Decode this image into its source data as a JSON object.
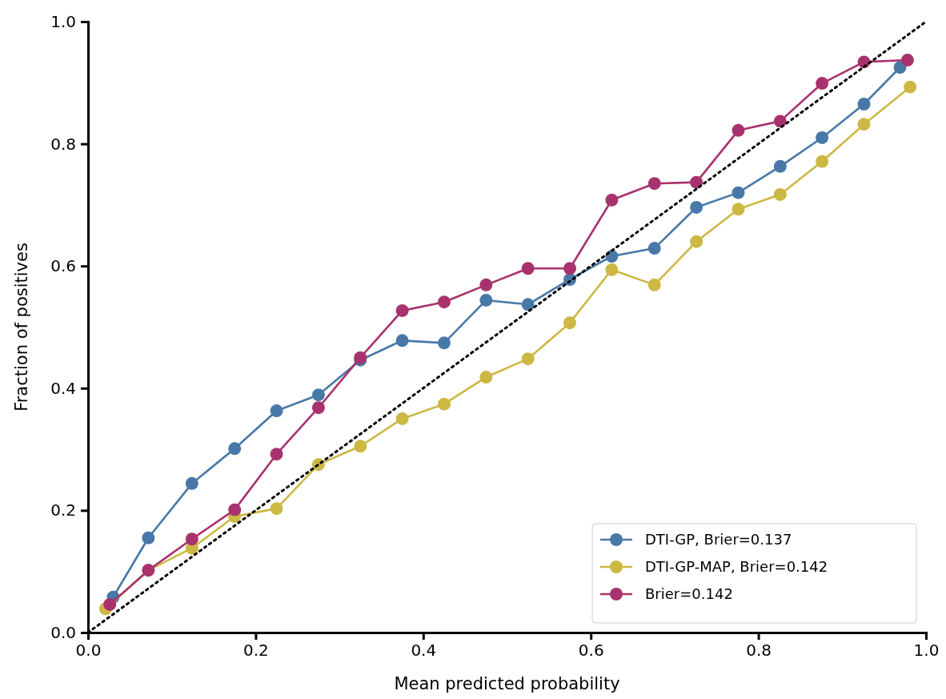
{
  "chart_data": {
    "type": "line",
    "xlabel": "Mean predicted probability",
    "ylabel": "Fraction of positives",
    "xlim": [
      0,
      1
    ],
    "ylim": [
      0,
      1
    ],
    "xticks": [
      {
        "value": 0,
        "label": "0.0"
      },
      0.2,
      0.4,
      0.6,
      0.8,
      {
        "value": 1,
        "label": "1.0"
      }
    ],
    "yticks": [
      {
        "value": 0,
        "label": "0.0"
      },
      0.2,
      0.4,
      0.6,
      0.8,
      {
        "value": 1,
        "label": "1.0"
      }
    ],
    "grid": false,
    "legend": "bottom right",
    "marker": "circle",
    "series": [
      {
        "name": "DTI-GP, Brier=0.137",
        "color": "#4878a8",
        "x": [
          0.03,
          0.072,
          0.124,
          0.175,
          0.225,
          0.275,
          0.325,
          0.375,
          0.425,
          0.475,
          0.525,
          0.575,
          0.625,
          0.676,
          0.726,
          0.776,
          0.826,
          0.876,
          0.926,
          0.969
        ],
        "values": [
          0.058,
          0.155,
          0.244,
          0.301,
          0.363,
          0.389,
          0.446,
          0.478,
          0.474,
          0.544,
          0.537,
          0.578,
          0.616,
          0.629,
          0.696,
          0.72,
          0.763,
          0.81,
          0.865,
          0.925
        ]
      },
      {
        "name": "DTI-GP-MAP, Brier=0.142",
        "color": "#ccb843",
        "x": [
          0.021,
          0.072,
          0.124,
          0.175,
          0.225,
          0.275,
          0.325,
          0.375,
          0.425,
          0.475,
          0.525,
          0.575,
          0.625,
          0.676,
          0.726,
          0.776,
          0.826,
          0.876,
          0.926,
          0.981
        ],
        "values": [
          0.039,
          0.102,
          0.138,
          0.19,
          0.203,
          0.275,
          0.305,
          0.35,
          0.374,
          0.418,
          0.448,
          0.507,
          0.594,
          0.569,
          0.64,
          0.693,
          0.717,
          0.771,
          0.832,
          0.893
        ]
      },
      {
        "name": "Brier=0.142",
        "color": "#a8326e",
        "x": [
          0.026,
          0.072,
          0.124,
          0.175,
          0.225,
          0.275,
          0.325,
          0.375,
          0.425,
          0.475,
          0.525,
          0.575,
          0.625,
          0.676,
          0.726,
          0.776,
          0.826,
          0.876,
          0.926,
          0.978
        ],
        "values": [
          0.046,
          0.102,
          0.153,
          0.201,
          0.292,
          0.368,
          0.45,
          0.527,
          0.541,
          0.569,
          0.596,
          0.596,
          0.708,
          0.735,
          0.737,
          0.822,
          0.837,
          0.899,
          0.934,
          0.937
        ]
      },
      {
        "type": "line",
        "color": "#000000",
        "line_style": "dotted",
        "marker": "none",
        "x": [
          0,
          1
        ],
        "values": [
          0,
          1
        ]
      }
    ]
  }
}
